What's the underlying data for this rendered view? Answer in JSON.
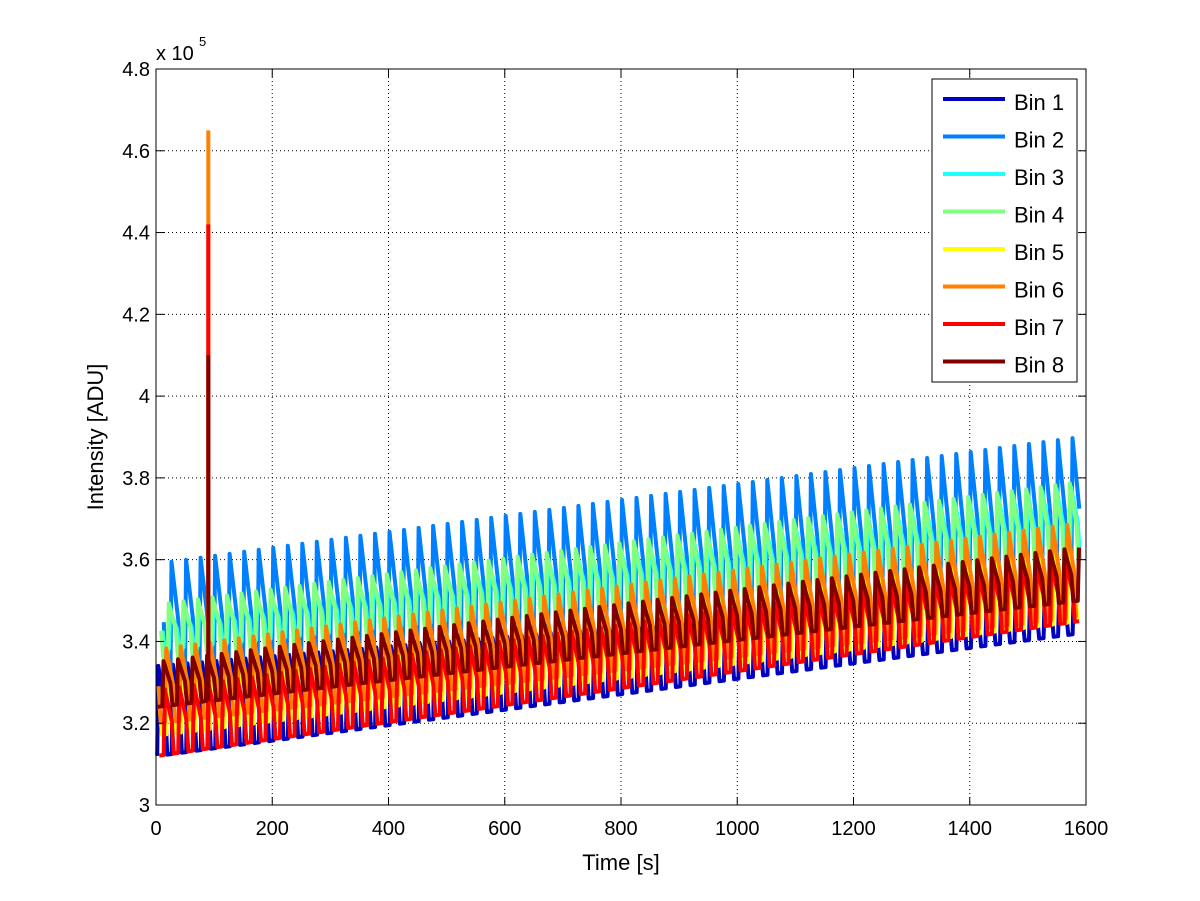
{
  "chart_data": {
    "type": "line",
    "xlabel": "Time [s]",
    "ylabel": "Intensity [ADU]",
    "y_multiplier_label": "x 10",
    "y_multiplier_exponent": "5",
    "xlim": [
      0,
      1600
    ],
    "ylim": [
      3.0,
      4.8
    ],
    "y_scale_note": "values in units of 1e5 ADU",
    "x_ticks": [
      "0",
      "200",
      "400",
      "600",
      "800",
      "1000",
      "1200",
      "1400",
      "1600"
    ],
    "y_ticks": [
      "3",
      "3.2",
      "3.4",
      "3.6",
      "3.8",
      "4",
      "4.2",
      "4.4",
      "4.6",
      "4.8"
    ],
    "grid": true,
    "legend_position": "top-right",
    "oscillation_period_s": 25,
    "spike": {
      "x": 90
    },
    "series": [
      {
        "name": "Bin 1",
        "color": "#0000bf",
        "low_start": 3.12,
        "low_end": 3.42,
        "high_start": 3.34,
        "high_end": 3.53,
        "spike_peak": 3.55
      },
      {
        "name": "Bin 2",
        "color": "#0080ff",
        "low_start": 3.3,
        "low_end": 3.55,
        "high_start": 3.59,
        "high_end": 3.9,
        "spike_peak": 3.62
      },
      {
        "name": "Bin 3",
        "color": "#20ffff",
        "low_start": 3.38,
        "low_end": 3.6,
        "high_start": 3.47,
        "high_end": 3.78,
        "spike_peak": 3.6
      },
      {
        "name": "Bin 4",
        "color": "#80ff80",
        "low_start": 3.36,
        "low_end": 3.58,
        "high_start": 3.49,
        "high_end": 3.79,
        "spike_peak": 3.62
      },
      {
        "name": "Bin 5",
        "color": "#ffff00",
        "low_start": 3.17,
        "low_end": 3.45,
        "high_start": 3.3,
        "high_end": 3.62,
        "spike_peak": 4.1
      },
      {
        "name": "Bin 6",
        "color": "#ff8000",
        "low_start": 3.2,
        "low_end": 3.46,
        "high_start": 3.38,
        "high_end": 3.69,
        "spike_peak": 4.65
      },
      {
        "name": "Bin 7",
        "color": "#ff0000",
        "low_start": 3.12,
        "low_end": 3.45,
        "high_start": 3.28,
        "high_end": 3.6,
        "spike_peak": 4.42
      },
      {
        "name": "Bin 8",
        "color": "#800000",
        "low_start": 3.24,
        "low_end": 3.5,
        "high_start": 3.35,
        "high_end": 3.63,
        "spike_peak": 4.1
      }
    ]
  }
}
